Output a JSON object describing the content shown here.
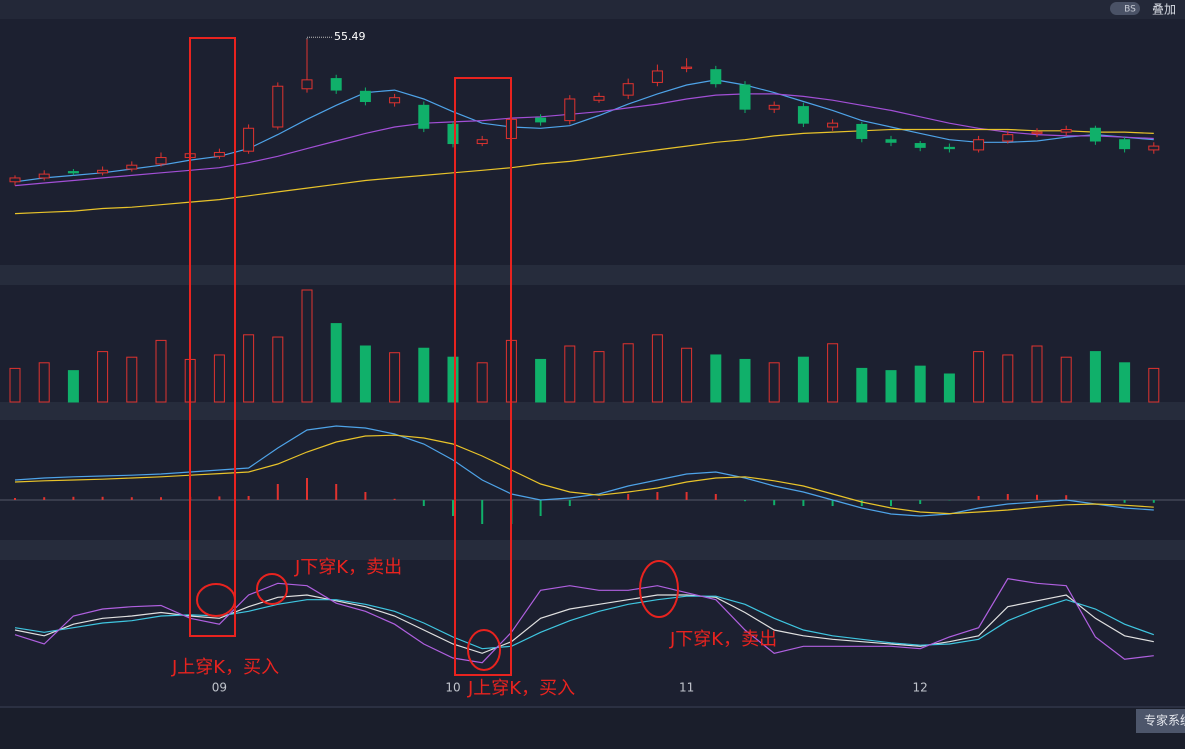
{
  "toolbar": {
    "badge": "BS",
    "overlay": "叠加"
  },
  "chart_data": [
    {
      "type": "candlestick",
      "up_color": "#e0332f",
      "down_color": "#10b06a",
      "ylim": [
        38,
        57
      ],
      "open": [
        44.3,
        44.6,
        45.1,
        45.0,
        45.3,
        45.7,
        46.2,
        46.3,
        46.7,
        48.6,
        51.6,
        52.4,
        51.4,
        50.5,
        50.3,
        48.8,
        47.3,
        47.7,
        49.3,
        49.1,
        50.7,
        51.1,
        52.1,
        53.2,
        53.1,
        51.9,
        50.0,
        50.2,
        48.6,
        48.8,
        47.6,
        47.3,
        47.0,
        46.8,
        47.5,
        48.1,
        48.2,
        48.5,
        47.6,
        46.8
      ],
      "high": [
        44.8,
        45.2,
        45.3,
        45.5,
        45.9,
        46.6,
        46.8,
        46.9,
        48.8,
        52.1,
        55.49,
        52.7,
        51.7,
        51.2,
        50.6,
        49.0,
        47.9,
        49.5,
        49.6,
        51.1,
        51.3,
        52.4,
        53.5,
        54.0,
        53.4,
        52.2,
        50.6,
        50.5,
        49.2,
        49.0,
        47.9,
        47.5,
        47.3,
        47.9,
        48.3,
        48.5,
        48.7,
        48.7,
        47.8,
        47.4
      ],
      "low": [
        44.0,
        44.4,
        44.8,
        44.8,
        45.1,
        45.5,
        46.0,
        46.1,
        46.5,
        48.4,
        51.3,
        51.2,
        50.3,
        50.2,
        48.2,
        47.0,
        47.1,
        47.5,
        48.7,
        48.8,
        50.5,
        50.8,
        51.8,
        52.9,
        51.7,
        49.7,
        49.7,
        48.6,
        48.3,
        47.4,
        47.1,
        46.7,
        46.6,
        46.6,
        47.3,
        47.8,
        47.9,
        47.2,
        46.6,
        46.5
      ],
      "close": [
        44.6,
        44.9,
        45.0,
        45.2,
        45.6,
        46.2,
        46.5,
        46.6,
        48.5,
        51.8,
        52.3,
        51.5,
        50.6,
        50.9,
        48.5,
        47.3,
        47.6,
        49.2,
        49.0,
        50.8,
        51.0,
        52.0,
        53.0,
        53.3,
        52.0,
        50.0,
        50.3,
        48.9,
        48.9,
        47.7,
        47.4,
        47.0,
        46.9,
        47.6,
        48.0,
        48.2,
        48.4,
        47.5,
        46.9,
        47.1
      ],
      "series": [
        {
          "color": "#4ea3e8",
          "values": [
            44.3,
            44.6,
            44.8,
            45.0,
            45.3,
            45.6,
            46.0,
            46.3,
            46.9,
            48.0,
            49.2,
            50.3,
            51.3,
            51.5,
            50.8,
            49.8,
            48.9,
            48.6,
            48.5,
            48.7,
            49.5,
            50.4,
            51.2,
            51.9,
            52.3,
            51.9,
            51.3,
            50.6,
            49.9,
            49.1,
            48.6,
            48.1,
            47.6,
            47.4,
            47.4,
            47.5,
            47.8,
            48.0,
            47.8,
            47.6
          ]
        },
        {
          "color": "#a24fd6",
          "values": [
            44.0,
            44.2,
            44.4,
            44.6,
            44.8,
            45.0,
            45.2,
            45.4,
            45.8,
            46.3,
            46.9,
            47.5,
            48.1,
            48.6,
            48.9,
            49.0,
            49.1,
            49.3,
            49.4,
            49.6,
            49.8,
            50.1,
            50.4,
            50.8,
            51.1,
            51.2,
            51.2,
            51.0,
            50.7,
            50.3,
            49.9,
            49.4,
            48.9,
            48.5,
            48.2,
            48.0,
            47.9,
            47.9,
            47.8,
            47.7
          ]
        },
        {
          "color": "#e8c32a",
          "values": [
            41.8,
            41.9,
            42.0,
            42.2,
            42.3,
            42.5,
            42.7,
            42.9,
            43.2,
            43.5,
            43.8,
            44.1,
            44.4,
            44.6,
            44.8,
            45.0,
            45.2,
            45.4,
            45.7,
            45.9,
            46.2,
            46.5,
            46.8,
            47.1,
            47.4,
            47.6,
            47.9,
            48.1,
            48.2,
            48.3,
            48.4,
            48.4,
            48.4,
            48.4,
            48.4,
            48.3,
            48.3,
            48.2,
            48.2,
            48.1
          ]
        }
      ]
    },
    {
      "type": "bar",
      "ylim": [
        0,
        100
      ],
      "values": [
        30,
        35,
        28,
        45,
        40,
        55,
        38,
        42,
        60,
        58,
        100,
        70,
        50,
        44,
        48,
        40,
        35,
        55,
        38,
        50,
        45,
        52,
        60,
        48,
        42,
        38,
        35,
        40,
        52,
        30,
        28,
        32,
        25,
        45,
        42,
        50,
        40,
        45,
        35,
        30
      ]
    },
    {
      "type": "line",
      "ylim": [
        -1,
        2
      ],
      "series": [
        {
          "color": "#4ea3e8",
          "values": [
            0.5,
            0.55,
            0.58,
            0.6,
            0.62,
            0.65,
            0.7,
            0.75,
            0.8,
            1.3,
            1.75,
            1.85,
            1.8,
            1.65,
            1.4,
            1.0,
            0.5,
            0.15,
            0.0,
            0.05,
            0.15,
            0.35,
            0.5,
            0.65,
            0.7,
            0.55,
            0.35,
            0.2,
            0.0,
            -0.2,
            -0.35,
            -0.4,
            -0.35,
            -0.2,
            -0.1,
            -0.05,
            0.0,
            -0.1,
            -0.2,
            -0.25
          ]
        },
        {
          "color": "#e8c32a",
          "values": [
            0.45,
            0.48,
            0.5,
            0.52,
            0.55,
            0.58,
            0.62,
            0.66,
            0.7,
            0.9,
            1.2,
            1.45,
            1.6,
            1.62,
            1.55,
            1.4,
            1.1,
            0.75,
            0.4,
            0.2,
            0.12,
            0.2,
            0.3,
            0.45,
            0.55,
            0.58,
            0.48,
            0.35,
            0.15,
            -0.05,
            -0.2,
            -0.3,
            -0.34,
            -0.3,
            -0.25,
            -0.18,
            -0.12,
            -0.1,
            -0.13,
            -0.18
          ]
        }
      ],
      "bars": [
        0.05,
        0.07,
        0.08,
        0.08,
        0.07,
        0.07,
        0.08,
        0.09,
        0.1,
        0.4,
        0.55,
        0.4,
        0.2,
        0.03,
        -0.15,
        -0.4,
        -0.6,
        -0.6,
        -0.4,
        -0.15,
        0.03,
        0.15,
        0.2,
        0.2,
        0.15,
        -0.03,
        -0.13,
        -0.15,
        -0.15,
        -0.15,
        -0.15,
        -0.1,
        -0.01,
        0.1,
        0.15,
        0.13,
        0.12,
        0.0,
        -0.07,
        -0.07
      ]
    },
    {
      "type": "line",
      "ylim": [
        -10,
        110
      ],
      "categories": [
        null,
        null,
        null,
        null,
        null,
        null,
        null,
        "09",
        null,
        null,
        null,
        null,
        null,
        null,
        null,
        "10",
        null,
        null,
        null,
        null,
        null,
        null,
        null,
        "11",
        null,
        null,
        null,
        null,
        null,
        null,
        null,
        "12",
        null,
        null,
        null,
        null,
        null,
        null,
        null,
        null
      ],
      "series": [
        {
          "color": "#e0e0e0",
          "values": [
            50,
            45,
            55,
            60,
            62,
            65,
            62,
            60,
            70,
            78,
            80,
            75,
            70,
            62,
            50,
            38,
            30,
            40,
            60,
            68,
            72,
            76,
            80,
            80,
            78,
            65,
            50,
            45,
            42,
            40,
            38,
            36,
            40,
            45,
            70,
            75,
            80,
            60,
            45,
            40
          ]
        },
        {
          "color": "#3fc6e0",
          "values": [
            52,
            48,
            52,
            56,
            58,
            62,
            63,
            62,
            66,
            72,
            76,
            76,
            72,
            66,
            56,
            44,
            34,
            36,
            48,
            58,
            66,
            72,
            76,
            79,
            79,
            72,
            60,
            50,
            45,
            42,
            39,
            37,
            38,
            42,
            58,
            68,
            76,
            68,
            55,
            46
          ]
        },
        {
          "color": "#b060e0",
          "values": [
            46,
            38,
            62,
            68,
            70,
            71,
            60,
            55,
            80,
            90,
            88,
            73,
            66,
            55,
            38,
            26,
            22,
            48,
            84,
            88,
            84,
            84,
            88,
            82,
            76,
            50,
            30,
            36,
            36,
            36,
            36,
            34,
            44,
            52,
            94,
            90,
            88,
            44,
            25,
            28
          ]
        }
      ],
      "annotations": [
        "J上穿K，买入",
        "J下穿K，卖出",
        "J上穿K，买入",
        "J下穿K，卖出"
      ]
    }
  ],
  "footer": {
    "button": "专家系统"
  }
}
